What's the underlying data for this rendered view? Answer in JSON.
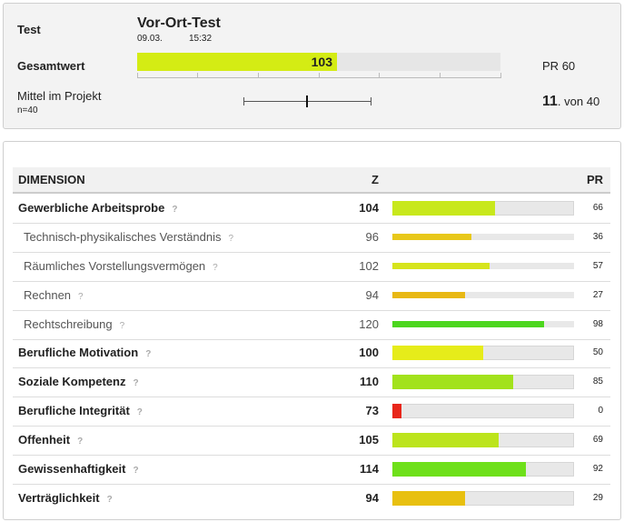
{
  "header": {
    "test_label": "Test",
    "test_name": "Vor-Ort-Test",
    "date": "09.03.",
    "time": "15:32",
    "total_label": "Gesamtwert",
    "total_z": 103,
    "total_color": "#d4ec14",
    "pr_label": "PR",
    "total_pr": 60,
    "zlim": [
      70,
      130
    ],
    "zticks": [
      70,
      80,
      90,
      100,
      110,
      120,
      130
    ],
    "project_label": "Mittel im Projekt",
    "n_label": "n=40",
    "project_range": {
      "low": 87.5,
      "mean": 98,
      "high": 108.5
    },
    "rank": 11,
    "rank_dot": ".",
    "rank_of": "von",
    "rank_total": 40
  },
  "table": {
    "columns": [
      "DIMENSION",
      "Z",
      "PR"
    ],
    "zlim": [
      70,
      130
    ],
    "rows": [
      {
        "name": "Gewerbliche Arbeitsprobe",
        "z": 104,
        "pr": 66,
        "level": "main",
        "color": "#c8e81c"
      },
      {
        "name": "Technisch-physikalisches Verständnis",
        "z": 96,
        "pr": 36,
        "level": "sub",
        "color": "#e8c81a"
      },
      {
        "name": "Räumliches Vorstellungsvermögen",
        "z": 102,
        "pr": 57,
        "level": "sub",
        "color": "#d6e41c"
      },
      {
        "name": "Rechnen",
        "z": 94,
        "pr": 27,
        "level": "sub",
        "color": "#e8b814"
      },
      {
        "name": "Rechtschreibung",
        "z": 120,
        "pr": 98,
        "level": "sub",
        "color": "#4cd61e"
      },
      {
        "name": "Berufliche Motivation",
        "z": 100,
        "pr": 50,
        "level": "main",
        "color": "#e6ec1a"
      },
      {
        "name": "Soziale Kompetenz",
        "z": 110,
        "pr": 85,
        "level": "main",
        "color": "#a2e21c"
      },
      {
        "name": "Berufliche Integrität",
        "z": 73,
        "pr": 0,
        "level": "main",
        "color": "#e8261a"
      },
      {
        "name": "Offenheit",
        "z": 105,
        "pr": 69,
        "level": "main",
        "color": "#bce41c"
      },
      {
        "name": "Gewissenhaftigkeit",
        "z": 114,
        "pr": 92,
        "level": "main",
        "color": "#6ee01a"
      },
      {
        "name": "Verträglichkeit",
        "z": 94,
        "pr": 29,
        "level": "main",
        "color": "#e8c010"
      }
    ]
  }
}
